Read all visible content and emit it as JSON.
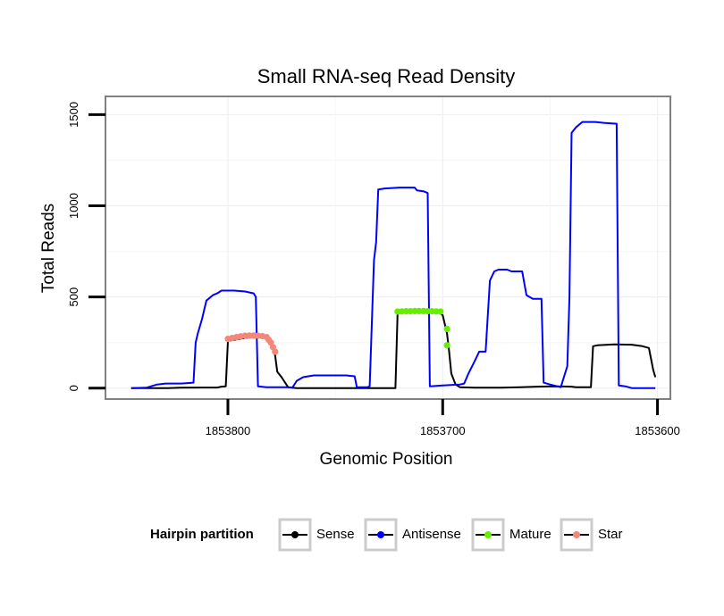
{
  "chart_data": {
    "type": "line",
    "title": "Small RNA-seq Read Density",
    "xlabel": "Genomic Position",
    "ylabel": "Total Reads",
    "xlim": [
      1853857,
      1853594
    ],
    "ylim": [
      -60,
      1600
    ],
    "x_ticks": [
      1853800,
      1853700,
      1853600
    ],
    "x_tick_labels": [
      "1853800",
      "1853700",
      "1853600"
    ],
    "y_ticks": [
      0,
      500,
      1000,
      1500
    ],
    "y_tick_labels": [
      "0",
      "500",
      "1000",
      "1500"
    ],
    "grid": true,
    "legend": {
      "title": "Hairpin partition",
      "position": "bottom",
      "entries": [
        "Sense",
        "Antisense",
        "Mature",
        "Star"
      ]
    },
    "series": [
      {
        "name": "Sense",
        "color": "#000000",
        "style": "line",
        "points": [
          [
            1853845,
            0
          ],
          [
            1853828,
            0
          ],
          [
            1853822,
            2
          ],
          [
            1853812,
            3
          ],
          [
            1853805,
            3
          ],
          [
            1853803,
            8
          ],
          [
            1853801,
            10
          ],
          [
            1853800,
            260
          ],
          [
            1853797,
            265
          ],
          [
            1853795,
            270
          ],
          [
            1853788,
            282
          ],
          [
            1853782,
            280
          ],
          [
            1853780,
            250
          ],
          [
            1853778,
            180
          ],
          [
            1853777,
            90
          ],
          [
            1853775,
            60
          ],
          [
            1853772,
            5
          ],
          [
            1853768,
            0
          ],
          [
            1853740,
            0
          ],
          [
            1853722,
            0
          ],
          [
            1853721,
            410
          ],
          [
            1853718,
            415
          ],
          [
            1853710,
            418
          ],
          [
            1853702,
            418
          ],
          [
            1853700,
            400
          ],
          [
            1853698,
            300
          ],
          [
            1853697,
            200
          ],
          [
            1853696,
            80
          ],
          [
            1853694,
            20
          ],
          [
            1853692,
            5
          ],
          [
            1853685,
            2
          ],
          [
            1853673,
            2
          ],
          [
            1853664,
            5
          ],
          [
            1853656,
            8
          ],
          [
            1853648,
            10
          ],
          [
            1853640,
            8
          ],
          [
            1853638,
            5
          ],
          [
            1853631,
            5
          ],
          [
            1853630,
            230
          ],
          [
            1853628,
            235
          ],
          [
            1853620,
            240
          ],
          [
            1853612,
            238
          ],
          [
            1853607,
            230
          ],
          [
            1853604,
            220
          ],
          [
            1853603,
            160
          ],
          [
            1853602,
            100
          ],
          [
            1853601,
            60
          ]
        ]
      },
      {
        "name": "Antisense",
        "color": "#0000ff",
        "style": "line",
        "points": [
          [
            1853845,
            0
          ],
          [
            1853838,
            2
          ],
          [
            1853833,
            20
          ],
          [
            1853829,
            25
          ],
          [
            1853822,
            25
          ],
          [
            1853818,
            28
          ],
          [
            1853816,
            30
          ],
          [
            1853815,
            250
          ],
          [
            1853814,
            300
          ],
          [
            1853812,
            380
          ],
          [
            1853810,
            480
          ],
          [
            1853807,
            510
          ],
          [
            1853805,
            520
          ],
          [
            1853803,
            535
          ],
          [
            1853797,
            535
          ],
          [
            1853792,
            530
          ],
          [
            1853788,
            520
          ],
          [
            1853787,
            500
          ],
          [
            1853786,
            10
          ],
          [
            1853782,
            5
          ],
          [
            1853772,
            5
          ],
          [
            1853770,
            2
          ],
          [
            1853768,
            40
          ],
          [
            1853765,
            60
          ],
          [
            1853760,
            70
          ],
          [
            1853745,
            70
          ],
          [
            1853741,
            65
          ],
          [
            1853740,
            5
          ],
          [
            1853735,
            5
          ],
          [
            1853734,
            10
          ],
          [
            1853732,
            700
          ],
          [
            1853731,
            800
          ],
          [
            1853730,
            1090
          ],
          [
            1853727,
            1095
          ],
          [
            1853720,
            1100
          ],
          [
            1853713,
            1100
          ],
          [
            1853712,
            1085
          ],
          [
            1853709,
            1080
          ],
          [
            1853707,
            1070
          ],
          [
            1853706,
            10
          ],
          [
            1853700,
            15
          ],
          [
            1853692,
            20
          ],
          [
            1853690,
            25
          ],
          [
            1853688,
            80
          ],
          [
            1853685,
            150
          ],
          [
            1853683,
            200
          ],
          [
            1853680,
            200
          ],
          [
            1853678,
            590
          ],
          [
            1853676,
            640
          ],
          [
            1853674,
            650
          ],
          [
            1853670,
            650
          ],
          [
            1853668,
            640
          ],
          [
            1853663,
            640
          ],
          [
            1853661,
            510
          ],
          [
            1853658,
            490
          ],
          [
            1853654,
            490
          ],
          [
            1853653,
            30
          ],
          [
            1853650,
            20
          ],
          [
            1853645,
            5
          ],
          [
            1853642,
            120
          ],
          [
            1853641,
            500
          ],
          [
            1853640,
            1400
          ],
          [
            1853638,
            1430
          ],
          [
            1853635,
            1460
          ],
          [
            1853629,
            1460
          ],
          [
            1853625,
            1455
          ],
          [
            1853619,
            1450
          ],
          [
            1853618,
            15
          ],
          [
            1853615,
            10
          ],
          [
            1853612,
            0
          ],
          [
            1853601,
            0
          ]
        ]
      },
      {
        "name": "Mature",
        "color": "#66ee00",
        "style": "points",
        "points": [
          [
            1853721,
            420
          ],
          [
            1853719,
            421
          ],
          [
            1853717,
            422
          ],
          [
            1853715,
            422
          ],
          [
            1853713,
            423
          ],
          [
            1853711,
            423
          ],
          [
            1853709,
            423
          ],
          [
            1853707,
            422
          ],
          [
            1853705,
            422
          ],
          [
            1853703,
            421
          ],
          [
            1853701,
            420
          ],
          [
            1853698,
            325
          ],
          [
            1853698,
            235
          ]
        ]
      },
      {
        "name": "Star",
        "color": "#f4877a",
        "style": "points",
        "points": [
          [
            1853800,
            270
          ],
          [
            1853798,
            275
          ],
          [
            1853796,
            280
          ],
          [
            1853794,
            284
          ],
          [
            1853792,
            287
          ],
          [
            1853790,
            288
          ],
          [
            1853788,
            288
          ],
          [
            1853786,
            287
          ],
          [
            1853784,
            285
          ],
          [
            1853782,
            280
          ],
          [
            1853781,
            265
          ],
          [
            1853780,
            250
          ],
          [
            1853779,
            225
          ],
          [
            1853778,
            200
          ]
        ]
      }
    ]
  }
}
